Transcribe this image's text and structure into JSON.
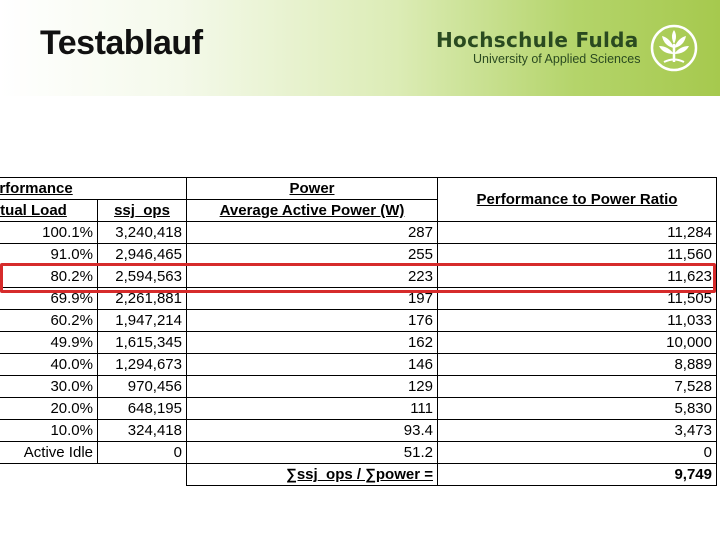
{
  "header": {
    "title": "Testablauf",
    "brand_name": "Hochschule Fulda",
    "brand_sub": "University of Applied Sciences"
  },
  "table": {
    "group_headers": {
      "performance": "Performance",
      "power": "Power",
      "ratio": "Performance to Power Ratio"
    },
    "sub_headers": {
      "actual_load": "Actual Load",
      "ssj_ops": "ssj_ops",
      "avg_power": "Average Active Power (W)"
    },
    "rows": [
      {
        "load": "100.1%",
        "ops": "3,240,418",
        "power": "287",
        "ratio": "11,284"
      },
      {
        "load": "91.0%",
        "ops": "2,946,465",
        "power": "255",
        "ratio": "11,560"
      },
      {
        "load": "80.2%",
        "ops": "2,594,563",
        "power": "223",
        "ratio": "11,623"
      },
      {
        "load": "69.9%",
        "ops": "2,261,881",
        "power": "197",
        "ratio": "11,505"
      },
      {
        "load": "60.2%",
        "ops": "1,947,214",
        "power": "176",
        "ratio": "11,033"
      },
      {
        "load": "49.9%",
        "ops": "1,615,345",
        "power": "162",
        "ratio": "10,000"
      },
      {
        "load": "40.0%",
        "ops": "1,294,673",
        "power": "146",
        "ratio": "8,889"
      },
      {
        "load": "30.0%",
        "ops": "970,456",
        "power": "129",
        "ratio": "7,528"
      },
      {
        "load": "20.0%",
        "ops": "648,195",
        "power": "111",
        "ratio": "5,830"
      },
      {
        "load": "10.0%",
        "ops": "324,418",
        "power": "93.4",
        "ratio": "3,473"
      },
      {
        "load": "Active Idle",
        "ops": "0",
        "power": "51.2",
        "ratio": "0"
      }
    ],
    "summary_label": "∑ssj_ops / ∑power =",
    "summary_value": "9,749"
  },
  "colors": {
    "highlight": "#d62b2b",
    "brand_green": "#a6c94e"
  }
}
